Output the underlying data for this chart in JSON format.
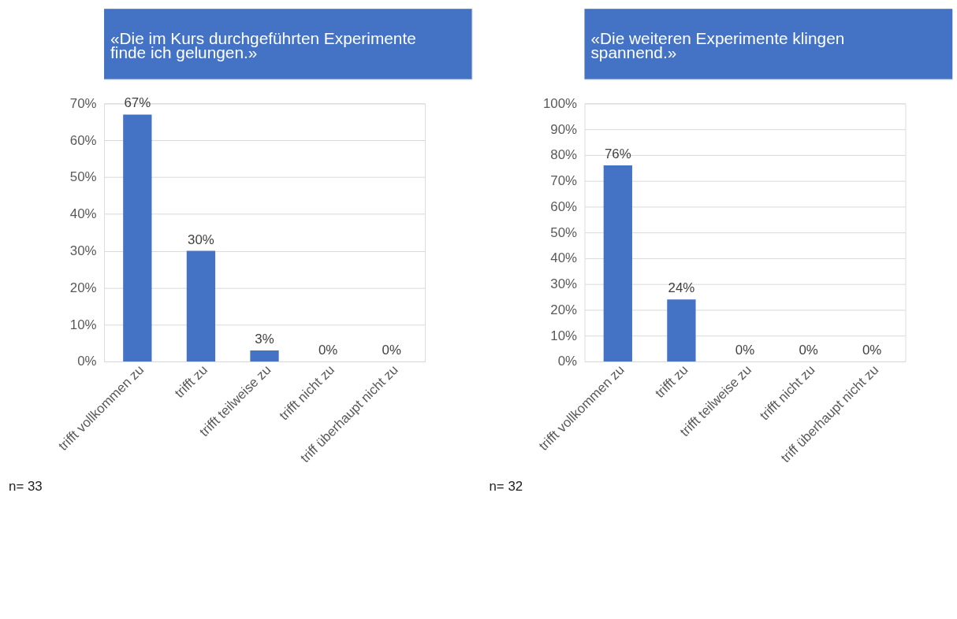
{
  "chart_data": [
    {
      "type": "bar",
      "title": "«Die im Kurs durchgeführten Experimente finde ich gelungen.»",
      "categories": [
        "trifft vollkommen zu",
        "trifft zu",
        "trifft teilweise zu",
        "trifft nicht zu",
        "triff überhaupt nicht zu"
      ],
      "values": [
        67,
        30,
        3,
        0,
        0
      ],
      "color": "#4472c4",
      "value_labels": [
        "67%",
        "30%",
        "3%",
        "0%",
        "0%"
      ],
      "ylim": [
        0,
        70
      ],
      "yticks": [
        {
          "value": 0,
          "label": "0%"
        },
        {
          "value": 10,
          "label": "10%"
        },
        {
          "value": 20,
          "label": "20%"
        },
        {
          "value": 30,
          "label": "30%"
        },
        {
          "value": 40,
          "label": "40%"
        },
        {
          "value": 50,
          "label": "50%"
        },
        {
          "value": 60,
          "label": "60%"
        },
        {
          "value": 70,
          "label": "70%"
        }
      ],
      "grid": "y",
      "annotations": [
        "n= 33"
      ]
    },
    {
      "type": "bar",
      "title": "«Die weiteren Experimente klingen spannend.»",
      "categories": [
        "trifft vollkommen zu",
        "trifft zu",
        "trifft teilweise zu",
        "trifft nicht zu",
        "triff überhaupt nicht zu"
      ],
      "values": [
        76,
        24,
        0,
        0,
        0
      ],
      "color": "#4472c4",
      "value_labels": [
        "76%",
        "24%",
        "0%",
        "0%",
        "0%"
      ],
      "ylim": [
        0,
        100
      ],
      "yticks": [
        {
          "value": 0,
          "label": "0%"
        },
        {
          "value": 10,
          "label": "10%"
        },
        {
          "value": 20,
          "label": "20%"
        },
        {
          "value": 30,
          "label": "30%"
        },
        {
          "value": 40,
          "label": "40%"
        },
        {
          "value": 50,
          "label": "50%"
        },
        {
          "value": 60,
          "label": "60%"
        },
        {
          "value": 70,
          "label": "70%"
        },
        {
          "value": 80,
          "label": "80%"
        },
        {
          "value": 90,
          "label": "90%"
        },
        {
          "value": 100,
          "label": "100%"
        }
      ],
      "grid": "y",
      "annotations": [
        "n= 32"
      ]
    }
  ]
}
